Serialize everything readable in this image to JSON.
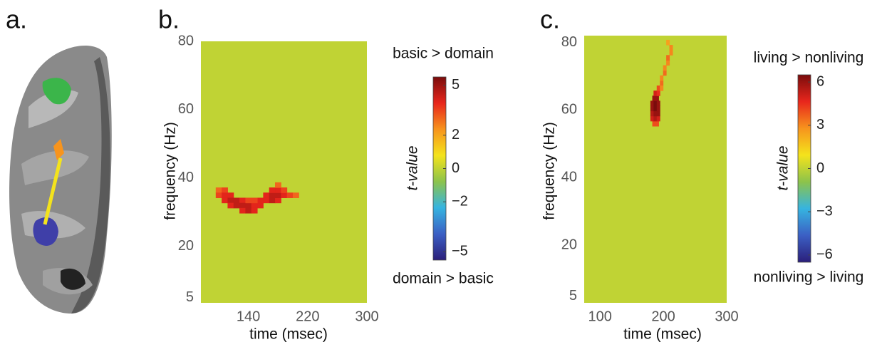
{
  "panel_a": {
    "label": "a."
  },
  "chart_data": [
    {
      "type": "heatmap",
      "panel_label": "b.",
      "xlabel": "time (msec)",
      "ylabel": "frequency (Hz)",
      "xlim": [
        76,
        300
      ],
      "ylim": [
        3.5,
        80
      ],
      "xticks": [
        140,
        220,
        300
      ],
      "yticks": [
        5,
        20,
        40,
        60,
        80
      ],
      "background_value": 0,
      "cell_size": [
        8,
        1.5
      ],
      "cells": {
        "x": [
          100,
          108,
          100,
          108,
          116,
          108,
          116,
          124,
          132,
          116,
          124,
          132,
          140,
          148,
          132,
          140,
          148,
          156,
          164,
          172,
          180,
          156,
          164,
          172,
          180,
          188,
          196,
          172,
          180,
          188,
          204,
          180,
          148,
          140
        ],
        "y": [
          36.5,
          36.5,
          35,
          35,
          35,
          33.5,
          33.5,
          33.5,
          33.5,
          32,
          32,
          32,
          32,
          32,
          30.5,
          30.5,
          30.5,
          32,
          33.5,
          33.5,
          33.5,
          33.5,
          35,
          35,
          35,
          35,
          35,
          36.5,
          36.5,
          36.5,
          35,
          38,
          33.5,
          33.5
        ],
        "values": [
          3,
          3.5,
          3.5,
          4,
          4,
          4,
          4.5,
          4.5,
          4,
          4,
          4.5,
          4.5,
          4.5,
          4,
          4,
          4.5,
          4,
          4,
          4,
          4.5,
          4,
          4,
          4,
          4.5,
          4.5,
          4,
          3.5,
          4,
          4,
          3.5,
          3,
          3,
          3.5,
          3.5
        ]
      },
      "colormap": [
        "#2b1f7a",
        "#3b5fc4",
        "#36b4e0",
        "#8cc34b",
        "#f4e31c",
        "#f7941d",
        "#e8261c",
        "#7a0c0c"
      ],
      "colorbar": {
        "label": "t-value",
        "top_label": "basic > domain",
        "bottom_label": "domain > basic",
        "clim": [
          -5.5,
          5.5
        ],
        "ticks": [
          5,
          2,
          0,
          {
            "value": -2,
            "label": "−2"
          },
          {
            "value": -5,
            "label": "−5"
          }
        ]
      }
    },
    {
      "type": "heatmap",
      "panel_label": "c.",
      "xlabel": "time (msec)",
      "ylabel": "frequency (Hz)",
      "xlim": [
        75,
        300
      ],
      "ylim": [
        3,
        82
      ],
      "xticks": [
        100,
        200,
        300
      ],
      "yticks": [
        5,
        20,
        40,
        60,
        80
      ],
      "background_value": 0,
      "cell_size": [
        5,
        1.5
      ],
      "cells": {
        "x": [
          185,
          190,
          182,
          187,
          192,
          182,
          187,
          192,
          182,
          187,
          192,
          182,
          187,
          192,
          185,
          190,
          187,
          192,
          192,
          197,
          197,
          202,
          202,
          207,
          207,
          212,
          212,
          207,
          197
        ],
        "y": [
          56,
          56,
          57.5,
          57.5,
          57.5,
          59,
          59,
          59,
          60.5,
          60.5,
          60.5,
          62,
          62,
          62,
          63.5,
          63.5,
          65,
          65,
          66.5,
          68,
          69.5,
          71,
          72.5,
          74,
          75.5,
          77,
          78.5,
          80,
          66.5
        ],
        "values": [
          4,
          4,
          5,
          5.5,
          5,
          5.5,
          6,
          6,
          6,
          6.5,
          6,
          6,
          6.5,
          6,
          6,
          6,
          5,
          4.5,
          4,
          3.5,
          3,
          3.5,
          3,
          3,
          3.5,
          3,
          3,
          2.5,
          3
        ]
      },
      "colormap": [
        "#2b1f7a",
        "#3b5fc4",
        "#36b4e0",
        "#8cc34b",
        "#f4e31c",
        "#f7941d",
        "#e8261c",
        "#7a0c0c"
      ],
      "colorbar": {
        "label": "t-value",
        "top_label": "living > nonliving",
        "bottom_label": "nonliving > living",
        "clim": [
          -6.5,
          6.5
        ],
        "ticks": [
          6,
          3,
          0,
          {
            "value": -3,
            "label": "−3"
          },
          {
            "value": -6,
            "label": "−6"
          }
        ]
      }
    }
  ]
}
